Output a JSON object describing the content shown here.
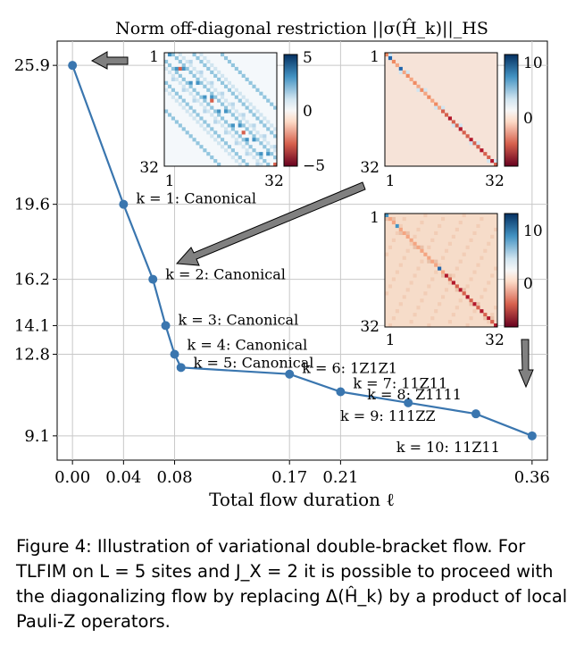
{
  "chart_data": {
    "type": "line",
    "title": "Norm off-diagonal restriction ||σ(Ĥ_k)||_HS",
    "xlabel": "Total flow duration ℓ",
    "ylabel": "",
    "xlim": [
      -0.012,
      0.372
    ],
    "ylim": [
      8.0,
      27.0
    ],
    "x_ticks": [
      0.0,
      0.04,
      0.08,
      0.17,
      0.21,
      0.36
    ],
    "x_tick_labels": [
      "0.00",
      "0.04",
      "0.08",
      "0.17",
      "0.21",
      "0.36"
    ],
    "y_ticks": [
      9.1,
      12.8,
      14.1,
      16.2,
      19.6,
      25.9
    ],
    "y_tick_labels": [
      "9.1",
      "12.8",
      "14.1",
      "16.2",
      "19.6",
      "25.9"
    ],
    "grid": true,
    "line_color": "#3a76af",
    "series": [
      {
        "x": [
          0.0,
          0.04,
          0.063,
          0.073,
          0.08,
          0.085,
          0.17,
          0.21,
          0.263,
          0.316,
          0.36
        ],
        "y": [
          25.9,
          19.6,
          16.2,
          14.1,
          12.8,
          12.2,
          11.9,
          11.1,
          10.6,
          10.1,
          9.1
        ]
      }
    ],
    "annotations": [
      {
        "text": "k = 1: Canonical",
        "x": 0.04,
        "y": 19.6
      },
      {
        "text": "k = 2: Canonical",
        "x": 0.063,
        "y": 16.2
      },
      {
        "text": "k = 3: Canonical",
        "x": 0.073,
        "y": 14.1
      },
      {
        "text": "k = 4: Canonical",
        "x": 0.08,
        "y": 12.8
      },
      {
        "text": "k = 5: Canonical",
        "x": 0.085,
        "y": 12.2
      },
      {
        "text": "k = 6: 1Z1Z1",
        "x": 0.17,
        "y": 11.9
      },
      {
        "text": "k = 7: 11Z11",
        "x": 0.21,
        "y": 11.1
      },
      {
        "text": "k = 8: Z1111",
        "x": 0.263,
        "y": 10.6
      },
      {
        "text": "k = 9: 111ZZ",
        "x": 0.316,
        "y": 10.1
      },
      {
        "text": "k = 10: 11Z11",
        "x": 0.36,
        "y": 9.1
      }
    ],
    "insets": [
      {
        "name": "matrix-k0",
        "tick_labels": [
          "1",
          "32"
        ],
        "colorbar_ticks": [
          "5",
          "0",
          "−5"
        ],
        "colorbar_range": [
          -5,
          5
        ]
      },
      {
        "name": "matrix-k1",
        "tick_labels": [
          "1",
          "32"
        ],
        "colorbar_ticks": [
          "10",
          "0"
        ],
        "colorbar_range": [
          -11,
          11
        ]
      },
      {
        "name": "matrix-k2",
        "tick_labels": [
          "1",
          "32"
        ],
        "colorbar_ticks": [
          "10",
          "0"
        ],
        "colorbar_range": [
          -12,
          12
        ]
      }
    ]
  },
  "caption": {
    "label": "Figure 4:",
    "text": "Illustration of variational double-bracket flow. For TLFIM on L = 5 sites and J_X = 2 it is possible to proceed with the diagonalizing flow by replacing Δ(Ĥ_k) by a product of local Pauli-Z operators."
  }
}
